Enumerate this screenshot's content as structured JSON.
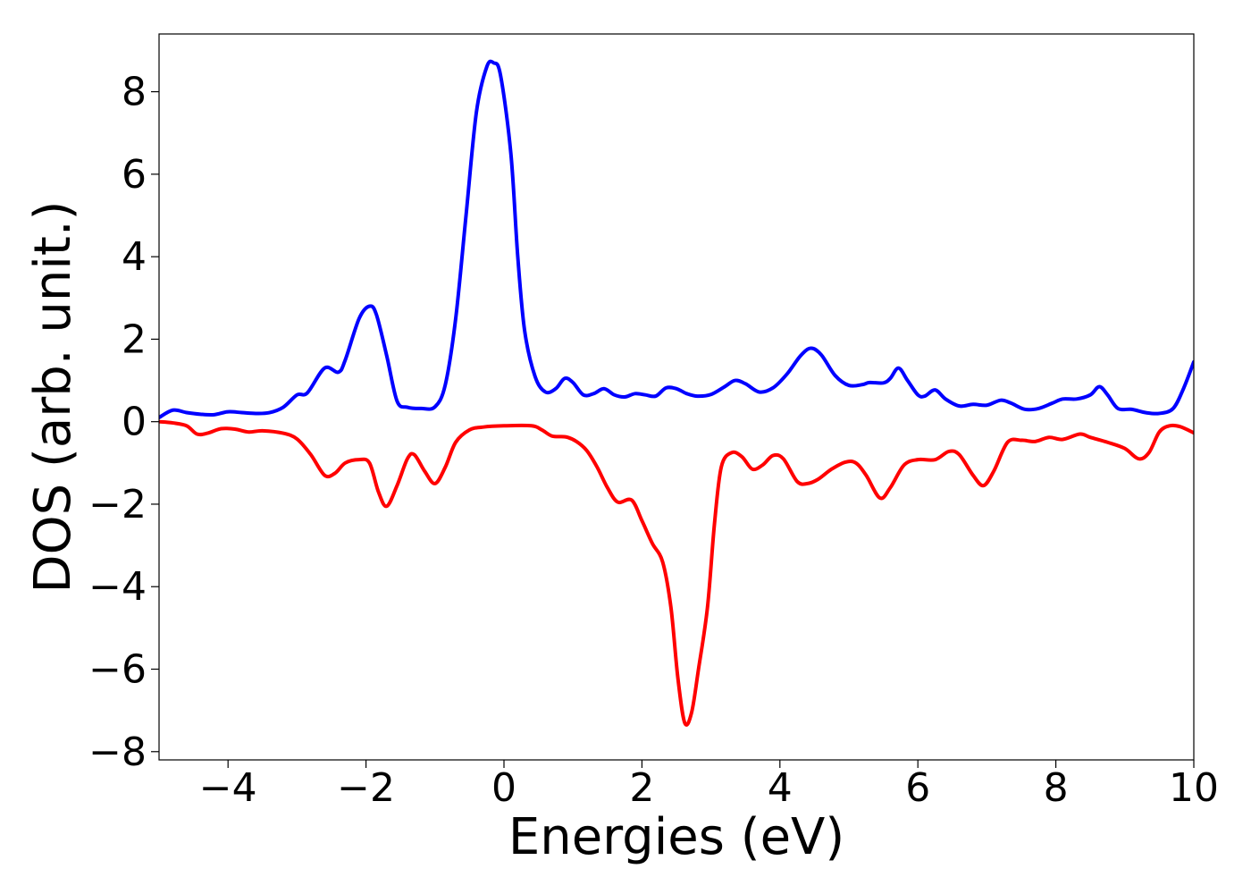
{
  "chart_data": {
    "type": "line",
    "title": "",
    "xlabel": "Energies (eV)",
    "ylabel": "DOS (arb. unit.)",
    "xlim": [
      -5,
      10
    ],
    "ylim": [
      -8.2,
      9.4
    ],
    "xticks": [
      -4,
      -2,
      0,
      2,
      4,
      6,
      8,
      10
    ],
    "xtick_labels": [
      "−4",
      "−2",
      "0",
      "2",
      "4",
      "6",
      "8",
      "10"
    ],
    "yticks": [
      8,
      6,
      4,
      2,
      0,
      -2,
      -4,
      -6,
      -8
    ],
    "ytick_labels": [
      "8",
      "6",
      "4",
      "2",
      "0",
      "−2",
      "−4",
      "−6",
      "−8"
    ],
    "grid": false,
    "legend": "none",
    "series": [
      {
        "color": "#0000ff",
        "points": [
          [
            -5.0,
            0.1
          ],
          [
            -4.8,
            0.28
          ],
          [
            -4.6,
            0.22
          ],
          [
            -4.4,
            0.18
          ],
          [
            -4.2,
            0.17
          ],
          [
            -4.0,
            0.24
          ],
          [
            -3.8,
            0.22
          ],
          [
            -3.6,
            0.2
          ],
          [
            -3.4,
            0.22
          ],
          [
            -3.2,
            0.35
          ],
          [
            -3.0,
            0.65
          ],
          [
            -2.85,
            0.7
          ],
          [
            -2.6,
            1.3
          ],
          [
            -2.4,
            1.2
          ],
          [
            -2.3,
            1.5
          ],
          [
            -2.1,
            2.5
          ],
          [
            -1.95,
            2.8
          ],
          [
            -1.85,
            2.6
          ],
          [
            -1.7,
            1.6
          ],
          [
            -1.55,
            0.5
          ],
          [
            -1.4,
            0.35
          ],
          [
            -1.2,
            0.32
          ],
          [
            -1.0,
            0.36
          ],
          [
            -0.85,
            0.9
          ],
          [
            -0.7,
            2.5
          ],
          [
            -0.55,
            5.0
          ],
          [
            -0.4,
            7.5
          ],
          [
            -0.25,
            8.6
          ],
          [
            -0.15,
            8.7
          ],
          [
            -0.05,
            8.4
          ],
          [
            0.1,
            6.5
          ],
          [
            0.2,
            4.0
          ],
          [
            0.3,
            2.2
          ],
          [
            0.45,
            1.1
          ],
          [
            0.6,
            0.72
          ],
          [
            0.75,
            0.8
          ],
          [
            0.88,
            1.05
          ],
          [
            1.0,
            0.95
          ],
          [
            1.15,
            0.65
          ],
          [
            1.3,
            0.68
          ],
          [
            1.45,
            0.8
          ],
          [
            1.6,
            0.65
          ],
          [
            1.75,
            0.6
          ],
          [
            1.9,
            0.68
          ],
          [
            2.05,
            0.65
          ],
          [
            2.2,
            0.62
          ],
          [
            2.35,
            0.82
          ],
          [
            2.5,
            0.8
          ],
          [
            2.65,
            0.68
          ],
          [
            2.8,
            0.62
          ],
          [
            3.0,
            0.66
          ],
          [
            3.2,
            0.85
          ],
          [
            3.35,
            1.0
          ],
          [
            3.5,
            0.92
          ],
          [
            3.7,
            0.72
          ],
          [
            3.9,
            0.82
          ],
          [
            4.1,
            1.15
          ],
          [
            4.3,
            1.6
          ],
          [
            4.45,
            1.78
          ],
          [
            4.6,
            1.62
          ],
          [
            4.8,
            1.12
          ],
          [
            5.0,
            0.88
          ],
          [
            5.2,
            0.9
          ],
          [
            5.3,
            0.95
          ],
          [
            5.5,
            0.94
          ],
          [
            5.6,
            1.05
          ],
          [
            5.72,
            1.3
          ],
          [
            5.85,
            1.0
          ],
          [
            6.0,
            0.65
          ],
          [
            6.1,
            0.62
          ],
          [
            6.25,
            0.77
          ],
          [
            6.4,
            0.55
          ],
          [
            6.6,
            0.38
          ],
          [
            6.8,
            0.42
          ],
          [
            7.0,
            0.4
          ],
          [
            7.2,
            0.52
          ],
          [
            7.35,
            0.45
          ],
          [
            7.55,
            0.3
          ],
          [
            7.75,
            0.32
          ],
          [
            7.95,
            0.45
          ],
          [
            8.1,
            0.55
          ],
          [
            8.3,
            0.55
          ],
          [
            8.5,
            0.65
          ],
          [
            8.63,
            0.85
          ],
          [
            8.75,
            0.65
          ],
          [
            8.9,
            0.32
          ],
          [
            9.1,
            0.3
          ],
          [
            9.3,
            0.22
          ],
          [
            9.5,
            0.2
          ],
          [
            9.7,
            0.32
          ],
          [
            9.85,
            0.8
          ],
          [
            10.0,
            1.45
          ]
        ]
      },
      {
        "color": "#ff0000",
        "points": [
          [
            -5.0,
            0.0
          ],
          [
            -4.8,
            -0.03
          ],
          [
            -4.6,
            -0.1
          ],
          [
            -4.45,
            -0.3
          ],
          [
            -4.3,
            -0.28
          ],
          [
            -4.1,
            -0.17
          ],
          [
            -3.9,
            -0.18
          ],
          [
            -3.7,
            -0.25
          ],
          [
            -3.5,
            -0.22
          ],
          [
            -3.2,
            -0.28
          ],
          [
            -3.0,
            -0.42
          ],
          [
            -2.8,
            -0.8
          ],
          [
            -2.6,
            -1.3
          ],
          [
            -2.45,
            -1.25
          ],
          [
            -2.3,
            -1.0
          ],
          [
            -2.1,
            -0.92
          ],
          [
            -1.95,
            -1.0
          ],
          [
            -1.82,
            -1.7
          ],
          [
            -1.7,
            -2.05
          ],
          [
            -1.55,
            -1.55
          ],
          [
            -1.4,
            -0.9
          ],
          [
            -1.3,
            -0.8
          ],
          [
            -1.15,
            -1.2
          ],
          [
            -1.0,
            -1.5
          ],
          [
            -0.85,
            -1.1
          ],
          [
            -0.7,
            -0.5
          ],
          [
            -0.5,
            -0.2
          ],
          [
            -0.3,
            -0.13
          ],
          [
            0.0,
            -0.1
          ],
          [
            0.4,
            -0.1
          ],
          [
            0.55,
            -0.2
          ],
          [
            0.7,
            -0.35
          ],
          [
            0.9,
            -0.37
          ],
          [
            1.05,
            -0.48
          ],
          [
            1.2,
            -0.7
          ],
          [
            1.35,
            -1.1
          ],
          [
            1.5,
            -1.6
          ],
          [
            1.65,
            -1.95
          ],
          [
            1.85,
            -1.9
          ],
          [
            2.0,
            -2.4
          ],
          [
            2.15,
            -2.95
          ],
          [
            2.3,
            -3.4
          ],
          [
            2.42,
            -4.5
          ],
          [
            2.52,
            -6.2
          ],
          [
            2.62,
            -7.3
          ],
          [
            2.72,
            -7.05
          ],
          [
            2.82,
            -6.0
          ],
          [
            2.95,
            -4.5
          ],
          [
            3.05,
            -2.5
          ],
          [
            3.15,
            -1.1
          ],
          [
            3.3,
            -0.75
          ],
          [
            3.45,
            -0.85
          ],
          [
            3.6,
            -1.15
          ],
          [
            3.75,
            -1.05
          ],
          [
            3.9,
            -0.82
          ],
          [
            4.05,
            -0.9
          ],
          [
            4.25,
            -1.45
          ],
          [
            4.4,
            -1.5
          ],
          [
            4.55,
            -1.4
          ],
          [
            4.75,
            -1.15
          ],
          [
            4.95,
            -0.98
          ],
          [
            5.1,
            -1.0
          ],
          [
            5.25,
            -1.3
          ],
          [
            5.45,
            -1.85
          ],
          [
            5.6,
            -1.6
          ],
          [
            5.8,
            -1.05
          ],
          [
            6.0,
            -0.92
          ],
          [
            6.25,
            -0.92
          ],
          [
            6.45,
            -0.72
          ],
          [
            6.6,
            -0.8
          ],
          [
            6.8,
            -1.3
          ],
          [
            6.95,
            -1.55
          ],
          [
            7.1,
            -1.2
          ],
          [
            7.3,
            -0.5
          ],
          [
            7.5,
            -0.45
          ],
          [
            7.7,
            -0.48
          ],
          [
            7.9,
            -0.38
          ],
          [
            8.1,
            -0.43
          ],
          [
            8.35,
            -0.3
          ],
          [
            8.5,
            -0.38
          ],
          [
            8.75,
            -0.5
          ],
          [
            9.0,
            -0.65
          ],
          [
            9.2,
            -0.9
          ],
          [
            9.35,
            -0.75
          ],
          [
            9.5,
            -0.25
          ],
          [
            9.65,
            -0.1
          ],
          [
            9.8,
            -0.12
          ],
          [
            10.0,
            -0.27
          ]
        ]
      }
    ]
  }
}
